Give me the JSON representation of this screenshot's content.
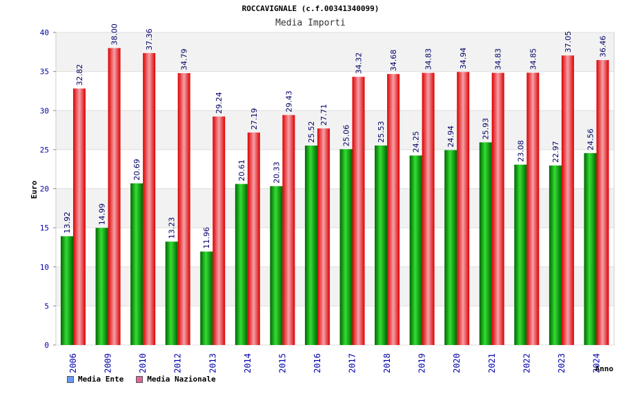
{
  "chart_data": {
    "type": "bar",
    "title": "ROCCAVIGNALE (c.f.00341340099)",
    "subtitle": "Media Importi",
    "xlabel": "Anno",
    "ylabel": "Euro",
    "ylim": [
      0,
      40
    ],
    "yticks": [
      0,
      5,
      10,
      15,
      20,
      25,
      30,
      35,
      40
    ],
    "grid": true,
    "legend_position": "bottom-left",
    "categories": [
      "2006",
      "2009",
      "2010",
      "2012",
      "2013",
      "2014",
      "2015",
      "2016",
      "2017",
      "2018",
      "2019",
      "2020",
      "2021",
      "2022",
      "2023",
      "2024"
    ],
    "series": [
      {
        "name": "Media Ente",
        "color": "#00aa00",
        "legend_color": "#6699ff",
        "values": [
          13.92,
          14.99,
          20.69,
          13.23,
          11.96,
          20.61,
          20.33,
          25.52,
          25.06,
          25.53,
          24.25,
          24.94,
          25.93,
          23.08,
          22.97,
          24.56
        ],
        "labels": [
          "13.92",
          "14.99",
          "20.69",
          "13.23",
          "11.96",
          "20.61",
          "20.33",
          "25.52",
          "25.06",
          "25.53",
          "24.25",
          "24.94",
          "25.93",
          "23.08",
          "22.97",
          "24.56"
        ]
      },
      {
        "name": "Media Nazionale",
        "color": "#ee2222",
        "legend_color": "#dd6699",
        "values": [
          32.82,
          38.0,
          37.36,
          34.79,
          29.24,
          27.19,
          29.43,
          27.71,
          34.32,
          34.68,
          34.83,
          34.94,
          34.83,
          34.85,
          37.05,
          36.46
        ],
        "labels": [
          "32.82",
          "38.00",
          "37.36",
          "34.79",
          "29.24",
          "27.19",
          "29.43",
          "27.71",
          "34.32",
          "34.68",
          "34.83",
          "34.94",
          "34.83",
          "34.85",
          "37.05",
          "36.46"
        ]
      }
    ]
  }
}
